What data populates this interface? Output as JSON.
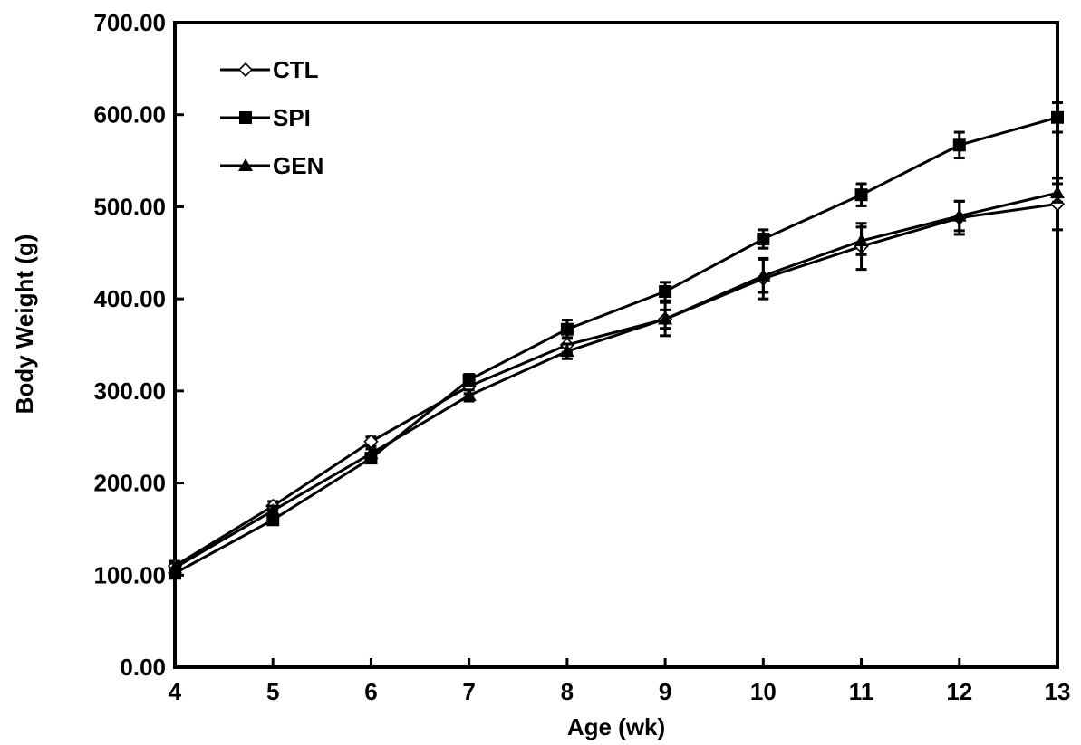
{
  "chart_data": {
    "type": "line",
    "title": "",
    "xlabel": "Age (wk)",
    "ylabel": "Body Weight (g)",
    "x": [
      4,
      5,
      6,
      7,
      8,
      9,
      10,
      11,
      12,
      13
    ],
    "xlim": [
      4,
      13
    ],
    "ylim": [
      0,
      700
    ],
    "yticks": [
      "0.00",
      "100.00",
      "200.00",
      "300.00",
      "400.00",
      "500.00",
      "600.00",
      "700.00"
    ],
    "xticks": [
      "4",
      "5",
      "6",
      "7",
      "8",
      "9",
      "10",
      "11",
      "12",
      "13"
    ],
    "grid": false,
    "legend_position": "top-left",
    "series": [
      {
        "name": "CTL",
        "marker": "open-diamond",
        "values": [
          110,
          175,
          245,
          305,
          350,
          378,
          422,
          457,
          488,
          503
        ],
        "errors": [
          5,
          5,
          5,
          8,
          8,
          18,
          22,
          25,
          18,
          28
        ]
      },
      {
        "name": "SPI",
        "marker": "filled-square",
        "values": [
          102,
          160,
          227,
          312,
          367,
          408,
          465,
          513,
          567,
          597
        ],
        "errors": [
          5,
          5,
          5,
          6,
          10,
          10,
          10,
          12,
          14,
          16
        ]
      },
      {
        "name": "GEN",
        "marker": "filled-triangle",
        "values": [
          108,
          170,
          232,
          295,
          343,
          378,
          425,
          463,
          490,
          515
        ],
        "errors": [
          5,
          5,
          5,
          6,
          8,
          10,
          18,
          15,
          16,
          10
        ]
      }
    ]
  }
}
